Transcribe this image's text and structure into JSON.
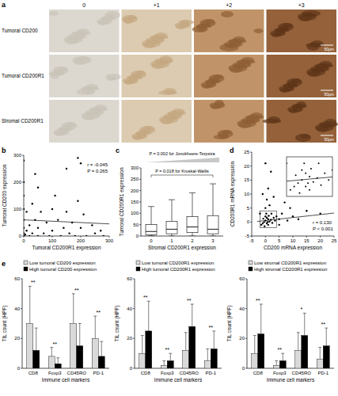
{
  "panel_a": {
    "label": "a",
    "columns": [
      "0",
      "+1",
      "+2",
      "+3"
    ],
    "rows": [
      "Tumoral CD200",
      "Tumoral CD200R1",
      "Stromal CD200R1"
    ],
    "scale_bar": "50μm"
  },
  "chart_data": [
    {
      "type": "scatter",
      "panel": "b",
      "x_label": "Tumoral CD200R1 expression",
      "y_label": "Tumoral CD200 expression",
      "annotations": [
        "r = -0.045",
        "P = 0.265"
      ],
      "xlim": [
        0,
        300
      ],
      "ylim": [
        0,
        300
      ],
      "xticks": [
        0,
        100,
        200,
        300
      ],
      "yticks": [
        0,
        100,
        200,
        300
      ],
      "color": "#000000",
      "marker": "circle",
      "x": [
        0,
        0,
        0,
        0,
        0,
        0,
        0,
        0,
        5,
        10,
        10,
        20,
        20,
        30,
        30,
        40,
        50,
        50,
        50,
        60,
        70,
        80,
        90,
        100,
        100,
        110,
        120,
        130,
        140,
        150,
        160,
        170,
        180,
        190,
        200,
        210,
        220,
        240,
        250,
        200,
        190,
        150,
        40,
        270,
        280
      ],
      "values": [
        0,
        10,
        30,
        60,
        100,
        150,
        200,
        280,
        5,
        20,
        90,
        0,
        40,
        120,
        10,
        60,
        0,
        30,
        180,
        90,
        10,
        50,
        0,
        20,
        100,
        150,
        60,
        0,
        30,
        90,
        10,
        50,
        0,
        130,
        30,
        80,
        0,
        40,
        10,
        270,
        290,
        250,
        230,
        20,
        0
      ],
      "trend_line": {
        "x": [
          0,
          300
        ],
        "y": [
          60,
          45
        ]
      }
    },
    {
      "type": "box",
      "panel": "c",
      "x_label": "Stromal CD200R1 expression",
      "y_label": "Tumoral CD200R1 expression",
      "categories": [
        "0",
        "1",
        "2",
        "3"
      ],
      "ylim": [
        0,
        300
      ],
      "yticks": [
        0,
        50,
        100,
        150,
        200,
        250,
        300
      ],
      "annotations": [
        "P = 0.002 for Jonckheere-Terpstra",
        "P = 0.018 for Kruskal-Wallis"
      ],
      "color": "#ffffff",
      "boxes": [
        {
          "whisker_low": 0,
          "q1": 5,
          "median": 20,
          "q3": 50,
          "whisker_high": 130
        },
        {
          "whisker_low": 0,
          "q1": 10,
          "median": 30,
          "q3": 65,
          "whisker_high": 160
        },
        {
          "whisker_low": 0,
          "q1": 15,
          "median": 40,
          "q3": 85,
          "whisker_high": 190
        },
        {
          "whisker_low": 0,
          "q1": 10,
          "median": 30,
          "q3": 90,
          "whisker_high": 230
        }
      ]
    },
    {
      "type": "scatter",
      "panel": "d",
      "x_label": "CD200 mRNA expression",
      "y_label": "CD200R1 mRNA expression",
      "annotations": [
        "r = 0.130",
        "P < 0.001"
      ],
      "xlim": [
        -5,
        25
      ],
      "ylim": [
        -5,
        25
      ],
      "xticks": [
        -5,
        0,
        5,
        10,
        15,
        20,
        25
      ],
      "yticks": [
        -5,
        0,
        5,
        10,
        15,
        20,
        25
      ],
      "color": "#000000",
      "marker": "circle",
      "x": [
        -1,
        -0.5,
        0,
        0.5,
        1,
        1.5,
        2,
        2.5,
        3,
        0,
        -0.8,
        0.3,
        1,
        -1.5,
        0.8,
        1.2,
        2.2,
        3.5,
        -0.3,
        0.5,
        4,
        5,
        6,
        8,
        10,
        12,
        15,
        20,
        0,
        0.5,
        1,
        -1,
        2,
        0,
        1.5,
        3,
        7,
        5,
        -2,
        9
      ],
      "values": [
        -0.5,
        0,
        0.5,
        -0.5,
        1,
        0.2,
        0.8,
        -0.3,
        1.5,
        2,
        1.2,
        3,
        -1,
        -1,
        0,
        2.2,
        3,
        0.5,
        -1.5,
        1.5,
        2,
        1,
        3,
        0.5,
        2,
        1,
        4,
        3,
        5,
        8,
        12,
        10,
        18,
        21,
        6,
        9,
        7,
        -1,
        3,
        5
      ],
      "trend_line": {
        "x": [
          -3,
          25
        ],
        "y": [
          0.2,
          3.2
        ]
      },
      "inset": {
        "xlim": [
          -2,
          4
        ],
        "ylim": [
          -2,
          4
        ]
      }
    },
    {
      "type": "bar",
      "panel": "e",
      "x_label": "Immune cell markers",
      "y_label": "TIL count (HPF)",
      "categories": [
        "CD8",
        "Foxp3",
        "CD45RO",
        "PD-1"
      ],
      "ylim": [
        0,
        60
      ],
      "yticks": [
        0,
        20,
        40,
        60
      ],
      "legend": "top",
      "series": [
        {
          "name": "Low tumoral CD200 expression",
          "color": "#d9d9d9",
          "values": [
            30,
            8,
            30,
            20
          ],
          "errors": [
            25,
            6,
            20,
            15
          ]
        },
        {
          "name": "High tumoral CD200 expression",
          "color": "#000000",
          "values": [
            12,
            3,
            15,
            8
          ],
          "errors": [
            15,
            4,
            15,
            10
          ]
        }
      ],
      "significance": [
        "**",
        "**",
        "**",
        "**"
      ]
    },
    {
      "type": "bar",
      "x_label": "Immune cell markers",
      "y_label": "TIL count (HPF)",
      "categories": [
        "CD8",
        "Foxp3",
        "CD45RO",
        "PD-1"
      ],
      "ylim": [
        0,
        60
      ],
      "yticks": [
        0,
        20,
        40,
        60
      ],
      "legend": "top",
      "series": [
        {
          "name": "Low tumoral CD200R1 expression",
          "color": "#d9d9d9",
          "values": [
            10,
            2,
            12,
            5
          ],
          "errors": [
            12,
            3,
            12,
            8
          ]
        },
        {
          "name": "High tumoral CD200R1 expression",
          "color": "#000000",
          "values": [
            25,
            5,
            28,
            13
          ],
          "errors": [
            20,
            5,
            15,
            12
          ]
        }
      ],
      "significance": [
        "**",
        "**",
        "**",
        "**"
      ]
    },
    {
      "type": "bar",
      "x_label": "Immune cell markers",
      "y_label": "TIL count (HPF)",
      "categories": [
        "CD8",
        "Foxp3",
        "CD45RO",
        "PD-1"
      ],
      "ylim": [
        0,
        60
      ],
      "yticks": [
        0,
        20,
        40,
        60
      ],
      "legend": "top",
      "series": [
        {
          "name": "Low stromal CD200R1 expression",
          "color": "#d9d9d9",
          "values": [
            10,
            2,
            12,
            6
          ],
          "errors": [
            12,
            3,
            12,
            8
          ]
        },
        {
          "name": "High stromal CD200R1 expression",
          "color": "#000000",
          "values": [
            23,
            5,
            22,
            15
          ],
          "errors": [
            20,
            5,
            15,
            12
          ]
        }
      ],
      "significance": [
        "**",
        "**",
        "*",
        "**"
      ]
    }
  ]
}
